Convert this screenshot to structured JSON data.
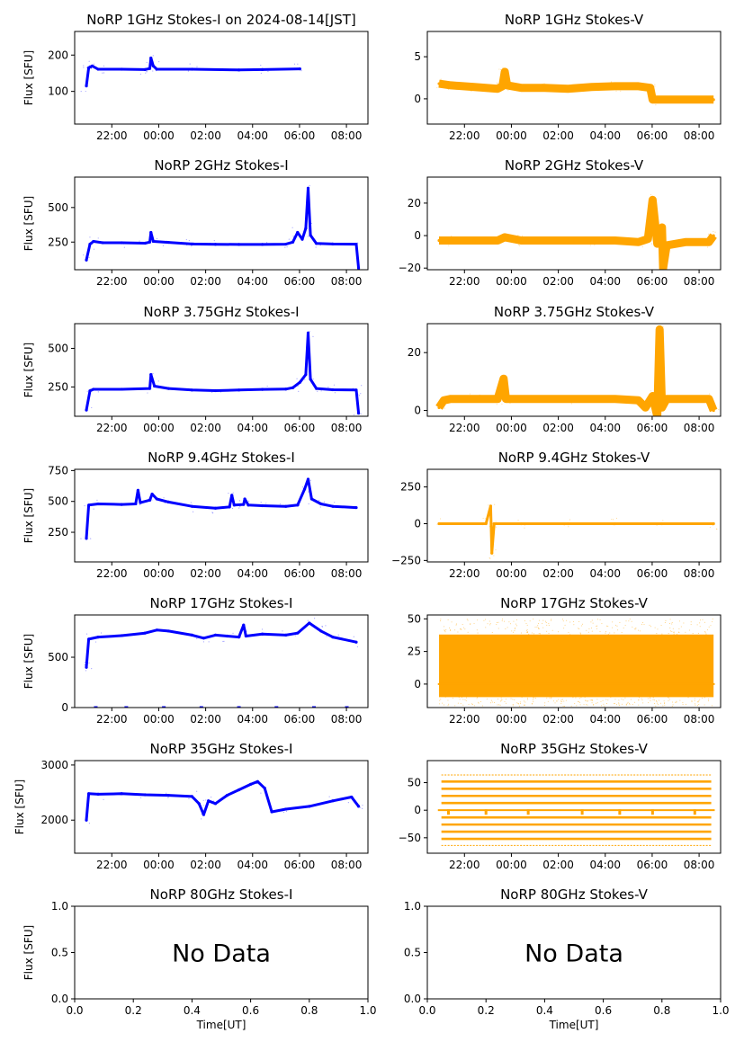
{
  "figure": {
    "x_axis_label": "Time[UT]",
    "y_axis_label": "Flux [SFU]",
    "time_ticks": [
      "22:00",
      "00:00",
      "02:00",
      "04:00",
      "06:00",
      "08:00"
    ],
    "no_data_ticks": [
      "0.0",
      "0.2",
      "0.4",
      "0.6",
      "0.8",
      "1.0"
    ],
    "no_data_label": "No Data",
    "stokes_i_color": "#0000ff",
    "stokes_v_color": "#ffa500"
  },
  "chart_data": [
    {
      "type": "scatter",
      "title": "NoRP 1GHz Stokes-I on 2024-08-14[JST]",
      "ylabel": "Flux [SFU]",
      "xlabel": "",
      "x_unit": "hours since 20:25 UT",
      "xlim": [
        0,
        12.5
      ],
      "ylim": [
        10,
        265
      ],
      "yticks": [
        100,
        200
      ],
      "series": [
        {
          "color": "#0000ff",
          "points": [
            [
              0.5,
              115
            ],
            [
              0.6,
              165
            ],
            [
              0.75,
              170
            ],
            [
              1,
              161
            ],
            [
              2,
              161
            ],
            [
              3,
              160
            ],
            [
              3.2,
              163
            ],
            [
              3.25,
              192
            ],
            [
              3.35,
              170
            ],
            [
              3.5,
              161
            ],
            [
              5,
              161
            ],
            [
              7,
              159
            ],
            [
              8,
              160
            ],
            [
              9.6,
              162
            ]
          ]
        }
      ]
    },
    {
      "type": "scatter",
      "title": "NoRP 1GHz Stokes-V",
      "ylabel": "",
      "xlabel": "",
      "x_unit": "hours since 20:25 UT",
      "xlim": [
        0,
        12.5
      ],
      "ylim": [
        -3,
        8
      ],
      "yticks": [
        0,
        5
      ],
      "series": [
        {
          "color": "#ffa500",
          "points": [
            [
              0.5,
              1.8
            ],
            [
              1,
              1.6
            ],
            [
              2,
              1.4
            ],
            [
              3,
              1.2
            ],
            [
              3.2,
              1.5
            ],
            [
              3.3,
              3.2
            ],
            [
              3.4,
              1.6
            ],
            [
              4,
              1.3
            ],
            [
              5,
              1.3
            ],
            [
              6,
              1.2
            ],
            [
              7,
              1.4
            ],
            [
              8,
              1.5
            ],
            [
              9,
              1.5
            ],
            [
              9.5,
              1.3
            ],
            [
              9.6,
              -0.1
            ],
            [
              12.2,
              -0.1
            ]
          ]
        }
      ]
    },
    {
      "type": "scatter",
      "title": "NoRP 2GHz Stokes-I",
      "ylabel": "Flux [SFU]",
      "xlabel": "",
      "x_unit": "hours since 20:25 UT",
      "xlim": [
        0,
        12.5
      ],
      "ylim": [
        50,
        720
      ],
      "yticks": [
        250,
        500
      ],
      "series": [
        {
          "color": "#0000ff",
          "points": [
            [
              0.5,
              120
            ],
            [
              0.65,
              235
            ],
            [
              0.8,
              255
            ],
            [
              1.2,
              245
            ],
            [
              2,
              245
            ],
            [
              3,
              242
            ],
            [
              3.2,
              250
            ],
            [
              3.25,
              320
            ],
            [
              3.35,
              255
            ],
            [
              4,
              248
            ],
            [
              5,
              236
            ],
            [
              6,
              234
            ],
            [
              7,
              233
            ],
            [
              8,
              233
            ],
            [
              9,
              235
            ],
            [
              9.3,
              250
            ],
            [
              9.5,
              320
            ],
            [
              9.7,
              270
            ],
            [
              9.85,
              350
            ],
            [
              9.95,
              640
            ],
            [
              10.05,
              300
            ],
            [
              10.3,
              240
            ],
            [
              11,
              236
            ],
            [
              12,
              235
            ],
            [
              12.1,
              60
            ]
          ]
        }
      ]
    },
    {
      "type": "scatter",
      "title": "NoRP 2GHz Stokes-V",
      "ylabel": "",
      "xlabel": "",
      "x_unit": "hours since 20:25 UT",
      "xlim": [
        0,
        12.5
      ],
      "ylim": [
        -21,
        36
      ],
      "yticks": [
        -20,
        0,
        20
      ],
      "series": [
        {
          "color": "#ffa500",
          "points": [
            [
              0.5,
              -3
            ],
            [
              1,
              -3
            ],
            [
              2,
              -3
            ],
            [
              3,
              -3
            ],
            [
              3.3,
              -1
            ],
            [
              4,
              -3
            ],
            [
              5,
              -3
            ],
            [
              6,
              -3
            ],
            [
              7,
              -3
            ],
            [
              8,
              -3
            ],
            [
              9,
              -4
            ],
            [
              9.4,
              -2
            ],
            [
              9.6,
              22
            ],
            [
              9.8,
              -5
            ],
            [
              10,
              5
            ],
            [
              10.05,
              -20
            ],
            [
              10.2,
              -6
            ],
            [
              11,
              -4
            ],
            [
              12,
              -4
            ],
            [
              12.2,
              0
            ]
          ]
        }
      ]
    },
    {
      "type": "scatter",
      "title": "NoRP 3.75GHz Stokes-I",
      "ylabel": "Flux [SFU]",
      "xlabel": "",
      "x_unit": "hours since 20:25 UT",
      "xlim": [
        0,
        12.5
      ],
      "ylim": [
        60,
        660
      ],
      "yticks": [
        250,
        500
      ],
      "series": [
        {
          "color": "#0000ff",
          "points": [
            [
              0.5,
              100
            ],
            [
              0.65,
              225
            ],
            [
              0.8,
              235
            ],
            [
              2,
              235
            ],
            [
              3.2,
              240
            ],
            [
              3.25,
              330
            ],
            [
              3.4,
              255
            ],
            [
              4,
              240
            ],
            [
              5,
              230
            ],
            [
              6,
              226
            ],
            [
              7,
              230
            ],
            [
              8,
              234
            ],
            [
              9,
              236
            ],
            [
              9.3,
              245
            ],
            [
              9.6,
              280
            ],
            [
              9.85,
              330
            ],
            [
              9.95,
              600
            ],
            [
              10.05,
              300
            ],
            [
              10.3,
              240
            ],
            [
              11,
              232
            ],
            [
              12,
              230
            ],
            [
              12.1,
              80
            ]
          ]
        }
      ]
    },
    {
      "type": "scatter",
      "title": "NoRP 3.75GHz Stokes-V",
      "ylabel": "",
      "xlabel": "",
      "x_unit": "hours since 20:25 UT",
      "xlim": [
        0,
        12.5
      ],
      "ylim": [
        -2,
        30
      ],
      "yticks": [
        0,
        20
      ],
      "series": [
        {
          "color": "#ffa500",
          "points": [
            [
              0.5,
              1
            ],
            [
              0.7,
              3.5
            ],
            [
              1,
              4
            ],
            [
              2,
              4
            ],
            [
              3,
              4
            ],
            [
              3.25,
              11
            ],
            [
              3.35,
              4
            ],
            [
              4,
              4
            ],
            [
              6,
              4
            ],
            [
              8,
              4
            ],
            [
              9,
              3.5
            ],
            [
              9.3,
              1
            ],
            [
              9.6,
              5
            ],
            [
              9.8,
              -2
            ],
            [
              9.9,
              28
            ],
            [
              10,
              1
            ],
            [
              10.2,
              4
            ],
            [
              11,
              4
            ],
            [
              12,
              4
            ],
            [
              12.2,
              0
            ]
          ]
        }
      ]
    },
    {
      "type": "scatter",
      "title": "NoRP 9.4GHz Stokes-I",
      "ylabel": "Flux [SFU]",
      "xlabel": "",
      "x_unit": "hours since 20:25 UT",
      "xlim": [
        0,
        12.5
      ],
      "ylim": [
        10,
        760
      ],
      "yticks": [
        250,
        500,
        750
      ],
      "series": [
        {
          "color": "#0000ff",
          "points": [
            [
              0.5,
              200
            ],
            [
              0.6,
              470
            ],
            [
              1,
              480
            ],
            [
              2,
              475
            ],
            [
              2.6,
              480
            ],
            [
              2.7,
              590
            ],
            [
              2.8,
              490
            ],
            [
              3.2,
              510
            ],
            [
              3.3,
              560
            ],
            [
              3.5,
              520
            ],
            [
              4,
              495
            ],
            [
              5,
              460
            ],
            [
              6,
              445
            ],
            [
              6.6,
              455
            ],
            [
              6.7,
              550
            ],
            [
              6.8,
              470
            ],
            [
              7.2,
              475
            ],
            [
              7.25,
              520
            ],
            [
              7.4,
              470
            ],
            [
              8,
              465
            ],
            [
              9,
              460
            ],
            [
              9.5,
              470
            ],
            [
              9.8,
              600
            ],
            [
              9.95,
              680
            ],
            [
              10.1,
              520
            ],
            [
              10.5,
              480
            ],
            [
              11,
              460
            ],
            [
              12,
              450
            ]
          ]
        }
      ]
    },
    {
      "type": "scatter",
      "title": "NoRP 9.4GHz Stokes-V",
      "ylabel": "",
      "xlabel": "",
      "x_unit": "hours since 20:25 UT",
      "xlim": [
        0,
        12.5
      ],
      "ylim": [
        -260,
        370
      ],
      "yticks": [
        -250,
        0,
        250
      ],
      "series": [
        {
          "color": "#ffa500",
          "points": [
            [
              0.5,
              0
            ],
            [
              2.5,
              0
            ],
            [
              2.7,
              120
            ],
            [
              2.75,
              -200
            ],
            [
              2.85,
              0
            ],
            [
              4,
              0
            ],
            [
              6,
              0
            ],
            [
              8,
              0
            ],
            [
              10,
              0
            ],
            [
              12.2,
              0
            ]
          ]
        }
      ]
    },
    {
      "type": "scatter",
      "title": "NoRP 17GHz Stokes-I",
      "ylabel": "Flux [SFU]",
      "xlabel": "",
      "x_unit": "hours since 20:25 UT",
      "xlim": [
        0,
        12.5
      ],
      "ylim": [
        0,
        920
      ],
      "yticks": [
        0,
        500
      ],
      "series": [
        {
          "color": "#0000ff",
          "points": [
            [
              0.5,
              400
            ],
            [
              0.6,
              680
            ],
            [
              1,
              700
            ],
            [
              2,
              715
            ],
            [
              3,
              740
            ],
            [
              3.5,
              770
            ],
            [
              4,
              760
            ],
            [
              5,
              720
            ],
            [
              5.5,
              690
            ],
            [
              6,
              720
            ],
            [
              6.5,
              710
            ],
            [
              7,
              700
            ],
            [
              7.2,
              820
            ],
            [
              7.3,
              710
            ],
            [
              8,
              730
            ],
            [
              9,
              720
            ],
            [
              9.5,
              740
            ],
            [
              10,
              840
            ],
            [
              10.5,
              760
            ],
            [
              11,
              700
            ],
            [
              12,
              650
            ]
          ]
        }
      ]
    },
    {
      "type": "scatter",
      "title": "NoRP 17GHz Stokes-V",
      "ylabel": "",
      "xlabel": "",
      "x_unit": "hours since 20:25 UT",
      "xlim": [
        0,
        12.5
      ],
      "ylim": [
        -18,
        53
      ],
      "yticks": [
        0,
        25,
        50
      ],
      "series": [
        {
          "color": "#ffa500",
          "points": [
            [
              0.5,
              0
            ],
            [
              12.2,
              0
            ]
          ]
        }
      ]
    },
    {
      "type": "scatter",
      "title": "NoRP 35GHz Stokes-I",
      "ylabel": "Flux [SFU]",
      "xlabel": "",
      "x_unit": "hours since 20:25 UT",
      "xlim": [
        0,
        12.5
      ],
      "ylim": [
        1400,
        3080
      ],
      "yticks": [
        2000,
        3000
      ],
      "series": [
        {
          "color": "#0000ff",
          "points": [
            [
              0.5,
              2000
            ],
            [
              0.6,
              2480
            ],
            [
              1,
              2470
            ],
            [
              2,
              2480
            ],
            [
              3,
              2460
            ],
            [
              4,
              2450
            ],
            [
              5,
              2430
            ],
            [
              5.3,
              2300
            ],
            [
              5.5,
              2100
            ],
            [
              5.7,
              2350
            ],
            [
              6,
              2300
            ],
            [
              6.5,
              2450
            ],
            [
              7,
              2550
            ],
            [
              7.5,
              2650
            ],
            [
              7.8,
              2700
            ],
            [
              8.1,
              2580
            ],
            [
              8.4,
              2150
            ],
            [
              9,
              2200
            ],
            [
              10,
              2250
            ],
            [
              11,
              2350
            ],
            [
              11.8,
              2420
            ],
            [
              12.1,
              2250
            ]
          ]
        }
      ]
    },
    {
      "type": "scatter",
      "title": "NoRP 35GHz Stokes-V",
      "ylabel": "",
      "xlabel": "",
      "x_unit": "hours since 20:25 UT",
      "xlim": [
        0,
        12.5
      ],
      "ylim": [
        -78,
        90
      ],
      "yticks": [
        -50,
        0,
        50
      ],
      "series": [
        {
          "color": "#ffa500",
          "levels": [
            -64,
            -52,
            -39,
            -26,
            -13,
            13,
            26,
            39,
            52,
            64
          ],
          "points": [
            [
              0.5,
              0
            ],
            [
              12.2,
              0
            ]
          ]
        }
      ]
    },
    {
      "type": "scatter",
      "title": "NoRP 80GHz Stokes-I",
      "ylabel": "Flux [SFU]",
      "xlabel": "Time[UT]",
      "xlim": [
        0,
        1
      ],
      "ylim": [
        0,
        1
      ],
      "yticks": [
        0.0,
        0.5,
        1.0
      ],
      "annotation": "No Data",
      "series": []
    },
    {
      "type": "scatter",
      "title": "NoRP 80GHz Stokes-V",
      "ylabel": "",
      "xlabel": "Time[UT]",
      "xlim": [
        0,
        1
      ],
      "ylim": [
        0,
        1
      ],
      "yticks": [
        0.0,
        0.5,
        1.0
      ],
      "annotation": "No Data",
      "series": []
    }
  ]
}
